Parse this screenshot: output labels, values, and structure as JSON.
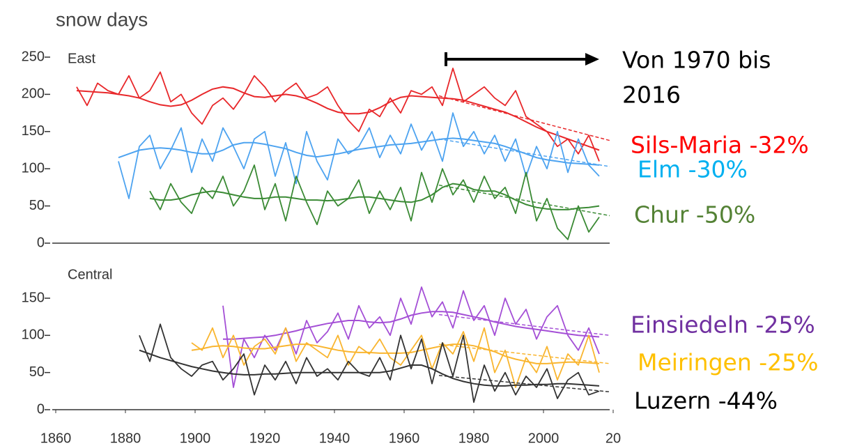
{
  "title": "snow days",
  "annotation": [
    "Von  1970 bis",
    "2016"
  ],
  "chart_data": [
    {
      "type": "line",
      "title": "East",
      "xlim": [
        1860,
        2019
      ],
      "ylim": [
        0,
        250
      ],
      "yticks": [
        0,
        50,
        100,
        150,
        200,
        250
      ],
      "x": [
        1863,
        1866,
        1869,
        1872,
        1875,
        1878,
        1881,
        1884,
        1887,
        1890,
        1893,
        1896,
        1899,
        1902,
        1905,
        1908,
        1911,
        1914,
        1917,
        1920,
        1923,
        1926,
        1929,
        1932,
        1935,
        1938,
        1941,
        1944,
        1947,
        1950,
        1953,
        1956,
        1959,
        1962,
        1965,
        1968,
        1971,
        1974,
        1977,
        1980,
        1983,
        1986,
        1989,
        1992,
        1995,
        1998,
        2001,
        2004,
        2007,
        2010,
        2013,
        2016
      ],
      "trend_x": [
        1970,
        2019
      ],
      "series": [
        {
          "name": "Sils-Maria -32%",
          "color": "#e8272a",
          "label_color": "#ff0000",
          "values": [
            null,
            210,
            185,
            215,
            205,
            200,
            225,
            195,
            205,
            230,
            190,
            200,
            175,
            160,
            185,
            195,
            180,
            200,
            225,
            210,
            190,
            205,
            215,
            195,
            200,
            210,
            185,
            165,
            150,
            180,
            170,
            195,
            175,
            205,
            200,
            210,
            185,
            235,
            190,
            200,
            210,
            195,
            185,
            205,
            170,
            160,
            150,
            130,
            140,
            120,
            145,
            110
          ],
          "smooth": [
            null,
            205,
            204,
            203,
            202,
            200,
            198,
            195,
            190,
            186,
            184,
            186,
            192,
            200,
            207,
            210,
            208,
            202,
            197,
            196,
            198,
            200,
            198,
            194,
            188,
            181,
            176,
            174,
            174,
            176,
            182,
            190,
            196,
            198,
            197,
            196,
            195,
            194,
            192,
            188,
            184,
            180,
            176,
            170,
            163,
            156,
            150,
            145,
            140,
            135,
            130,
            125
          ],
          "trend": [
            198,
            138
          ]
        },
        {
          "name": "Elm -30%",
          "color": "#4da3f0",
          "label_color": "#00b0f0",
          "values": [
            null,
            null,
            null,
            null,
            null,
            110,
            60,
            130,
            145,
            100,
            125,
            155,
            95,
            140,
            110,
            155,
            130,
            100,
            140,
            150,
            90,
            135,
            80,
            150,
            110,
            85,
            140,
            120,
            130,
            155,
            115,
            145,
            120,
            160,
            125,
            150,
            110,
            175,
            130,
            150,
            120,
            145,
            110,
            140,
            90,
            130,
            100,
            150,
            95,
            140,
            105,
            90
          ],
          "smooth": [
            null,
            null,
            null,
            null,
            null,
            115,
            120,
            125,
            127,
            128,
            127,
            125,
            122,
            120,
            120,
            125,
            132,
            135,
            135,
            133,
            130,
            127,
            122,
            118,
            116,
            118,
            120,
            123,
            126,
            128,
            130,
            132,
            133,
            134,
            136,
            138,
            140,
            141,
            140,
            138,
            136,
            134,
            130,
            125,
            120,
            115,
            112,
            110,
            108,
            107,
            106,
            105
          ],
          "trend": [
            140,
            103
          ]
        },
        {
          "name": "Chur -50%",
          "color": "#3a8a34",
          "label_color": "#548235",
          "values": [
            null,
            null,
            null,
            null,
            null,
            null,
            null,
            null,
            70,
            45,
            80,
            55,
            40,
            75,
            60,
            90,
            50,
            70,
            105,
            45,
            80,
            30,
            90,
            55,
            25,
            70,
            50,
            60,
            85,
            40,
            70,
            45,
            75,
            30,
            95,
            55,
            100,
            65,
            85,
            55,
            90,
            60,
            75,
            40,
            95,
            30,
            60,
            20,
            5,
            50,
            15,
            35
          ],
          "smooth": [
            null,
            null,
            null,
            null,
            null,
            null,
            null,
            null,
            60,
            58,
            58,
            60,
            65,
            68,
            70,
            68,
            65,
            62,
            60,
            60,
            62,
            62,
            60,
            58,
            58,
            57,
            58,
            60,
            62,
            62,
            60,
            58,
            56,
            55,
            58,
            65,
            75,
            80,
            78,
            72,
            70,
            70,
            65,
            58,
            52,
            48,
            46,
            45,
            45,
            47,
            48,
            50
          ],
          "trend": [
            78,
            37
          ]
        }
      ]
    },
    {
      "type": "line",
      "title": "Central",
      "xlim": [
        1860,
        2019
      ],
      "ylim": [
        0,
        150
      ],
      "yticks": [
        0,
        50,
        100,
        150
      ],
      "xticks": [
        1860,
        1880,
        1900,
        1920,
        1940,
        1960,
        1980,
        2000,
        {
          "value": 2020,
          "label": "20"
        }
      ],
      "x": [
        1863,
        1866,
        1869,
        1872,
        1875,
        1878,
        1881,
        1884,
        1887,
        1890,
        1893,
        1896,
        1899,
        1902,
        1905,
        1908,
        1911,
        1914,
        1917,
        1920,
        1923,
        1926,
        1929,
        1932,
        1935,
        1938,
        1941,
        1944,
        1947,
        1950,
        1953,
        1956,
        1959,
        1962,
        1965,
        1968,
        1971,
        1974,
        1977,
        1980,
        1983,
        1986,
        1989,
        1992,
        1995,
        1998,
        2001,
        2004,
        2007,
        2010,
        2013,
        2016
      ],
      "trend_x": [
        1970,
        2019
      ],
      "series": [
        {
          "name": "Einsiedeln -25%",
          "color": "#a44fd6",
          "label_color": "#7030a0",
          "values": [
            null,
            null,
            null,
            null,
            null,
            null,
            null,
            null,
            null,
            null,
            null,
            null,
            null,
            null,
            null,
            140,
            30,
            95,
            70,
            100,
            80,
            110,
            75,
            120,
            90,
            105,
            130,
            95,
            140,
            110,
            125,
            100,
            150,
            115,
            165,
            125,
            145,
            110,
            160,
            120,
            140,
            100,
            150,
            115,
            135,
            95,
            125,
            140,
            100,
            80,
            110,
            75
          ],
          "smooth": [
            null,
            null,
            null,
            null,
            null,
            null,
            null,
            null,
            null,
            null,
            null,
            null,
            null,
            null,
            null,
            95,
            95,
            96,
            97,
            98,
            100,
            103,
            106,
            110,
            113,
            116,
            118,
            120,
            120,
            118,
            117,
            118,
            122,
            127,
            130,
            132,
            132,
            131,
            128,
            125,
            122,
            118,
            115,
            112,
            110,
            108,
            106,
            104,
            102,
            100,
            99,
            98
          ],
          "trend": [
            128,
            100
          ]
        },
        {
          "name": "Meiringen -25%",
          "color": "#f9b52f",
          "label_color": "#ffc000",
          "values": [
            null,
            null,
            null,
            null,
            null,
            null,
            null,
            null,
            null,
            null,
            null,
            null,
            90,
            80,
            110,
            70,
            100,
            60,
            85,
            95,
            75,
            110,
            65,
            90,
            80,
            70,
            100,
            60,
            85,
            75,
            95,
            70,
            60,
            80,
            100,
            55,
            90,
            75,
            105,
            65,
            110,
            50,
            80,
            30,
            70,
            50,
            85,
            40,
            75,
            60,
            100,
            50
          ],
          "smooth": [
            null,
            null,
            null,
            null,
            null,
            null,
            null,
            null,
            null,
            null,
            null,
            null,
            80,
            82,
            85,
            86,
            85,
            83,
            82,
            82,
            84,
            86,
            88,
            88,
            86,
            83,
            80,
            78,
            77,
            77,
            76,
            76,
            76,
            77,
            80,
            83,
            86,
            88,
            88,
            86,
            82,
            78,
            72,
            68,
            65,
            62,
            62,
            63,
            64,
            64,
            63,
            62
          ],
          "trend": [
            88,
            62
          ]
        },
        {
          "name": "Luzern -44%",
          "color": "#333333",
          "label_color": "#000000",
          "values": [
            null,
            null,
            null,
            null,
            null,
            null,
            null,
            100,
            65,
            115,
            70,
            55,
            45,
            60,
            65,
            40,
            55,
            75,
            20,
            60,
            40,
            65,
            35,
            70,
            45,
            55,
            40,
            65,
            50,
            45,
            70,
            40,
            100,
            55,
            95,
            35,
            90,
            45,
            100,
            10,
            60,
            25,
            50,
            20,
            45,
            30,
            55,
            15,
            40,
            50,
            20,
            25
          ],
          "smooth": [
            null,
            null,
            null,
            null,
            null,
            null,
            null,
            80,
            75,
            70,
            66,
            62,
            58,
            55,
            52,
            50,
            48,
            47,
            47,
            48,
            48,
            49,
            50,
            50,
            50,
            50,
            50,
            50,
            50,
            50,
            50,
            52,
            56,
            60,
            60,
            55,
            48,
            42,
            38,
            35,
            33,
            32,
            32,
            33,
            33,
            34,
            34,
            35,
            35,
            34,
            33,
            32
          ],
          "trend": [
            46,
            24
          ]
        }
      ]
    }
  ]
}
